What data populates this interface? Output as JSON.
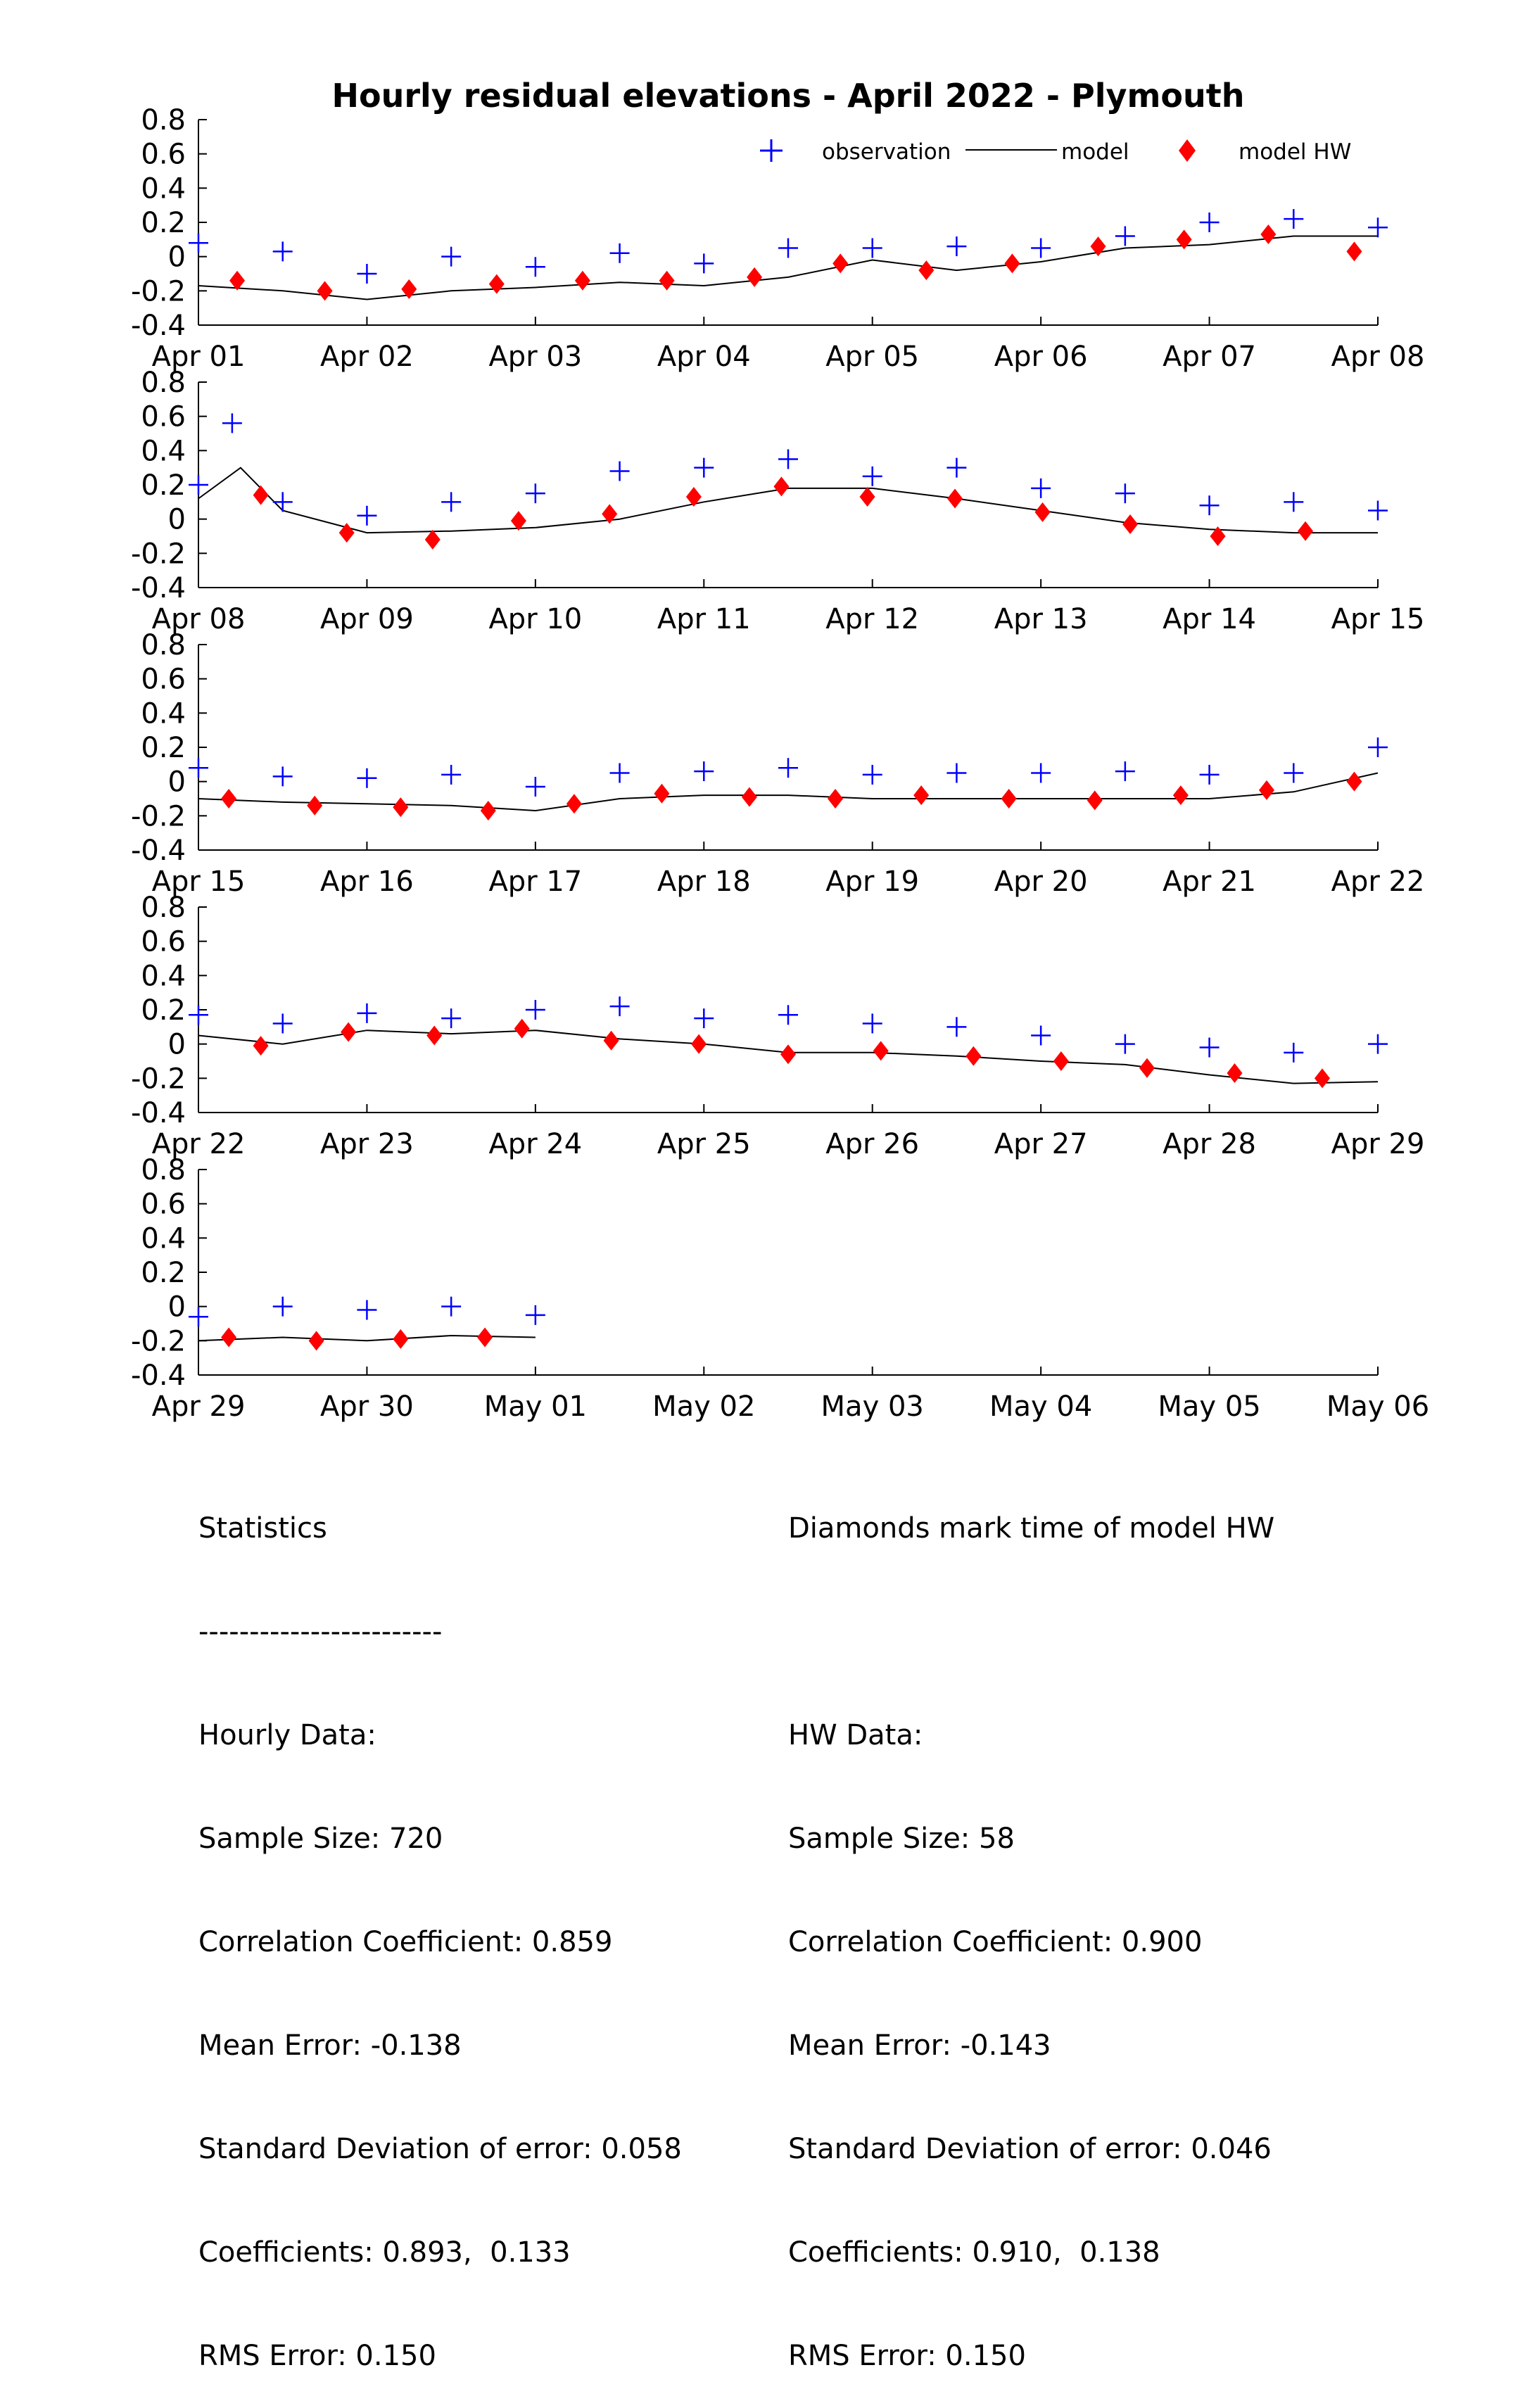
{
  "chart_data": {
    "type": "scatter",
    "title": "Hourly residual elevations - April  2022 - Plymouth",
    "legend": {
      "placement": "top-right",
      "entries": [
        {
          "label": "observation",
          "marker": "plus",
          "color": "#0000ff"
        },
        {
          "label": "model",
          "marker": "line",
          "color": "#000000"
        },
        {
          "label": "model HW",
          "marker": "diamond",
          "color": "#ff0000"
        }
      ]
    },
    "ylim": [
      -0.4,
      0.8
    ],
    "yticks": [
      "0.8",
      "0.6",
      "0.4",
      "0.2",
      "0",
      "-0.2",
      "-0.4"
    ],
    "grid": false,
    "panels": [
      {
        "xlim_days": [
          0,
          7
        ],
        "xtick_labels": [
          "Apr 01",
          "Apr 02",
          "Apr 03",
          "Apr 04",
          "Apr 05",
          "Apr 06",
          "Apr 07",
          "Apr 08"
        ],
        "observation": [
          [
            0.0,
            0.08
          ],
          [
            0.5,
            0.03
          ],
          [
            1.0,
            -0.1
          ],
          [
            1.5,
            0.0
          ],
          [
            2.0,
            -0.06
          ],
          [
            2.5,
            0.02
          ],
          [
            3.0,
            -0.04
          ],
          [
            3.5,
            0.05
          ],
          [
            4.0,
            0.05
          ],
          [
            4.5,
            0.06
          ],
          [
            5.0,
            0.05
          ],
          [
            5.5,
            0.12
          ],
          [
            6.0,
            0.2
          ],
          [
            6.5,
            0.22
          ],
          [
            7.0,
            0.17
          ]
        ],
        "model": [
          [
            0.0,
            -0.17
          ],
          [
            0.5,
            -0.2
          ],
          [
            1.0,
            -0.25
          ],
          [
            1.5,
            -0.2
          ],
          [
            2.0,
            -0.18
          ],
          [
            2.5,
            -0.15
          ],
          [
            3.0,
            -0.17
          ],
          [
            3.5,
            -0.12
          ],
          [
            4.0,
            -0.02
          ],
          [
            4.5,
            -0.08
          ],
          [
            5.0,
            -0.03
          ],
          [
            5.5,
            0.05
          ],
          [
            6.0,
            0.07
          ],
          [
            6.5,
            0.12
          ],
          [
            7.0,
            0.12
          ]
        ],
        "model_hw": [
          [
            0.23,
            -0.14
          ],
          [
            0.75,
            -0.2
          ],
          [
            1.25,
            -0.19
          ],
          [
            1.77,
            -0.16
          ],
          [
            2.28,
            -0.14
          ],
          [
            2.78,
            -0.14
          ],
          [
            3.3,
            -0.12
          ],
          [
            3.81,
            -0.04
          ],
          [
            4.32,
            -0.08
          ],
          [
            4.83,
            -0.04
          ],
          [
            5.34,
            0.06
          ],
          [
            5.85,
            0.1
          ],
          [
            6.35,
            0.13
          ],
          [
            6.86,
            0.03
          ]
        ]
      },
      {
        "xlim_days": [
          7,
          14
        ],
        "xtick_labels": [
          "Apr 08",
          "Apr 09",
          "Apr 10",
          "Apr 11",
          "Apr 12",
          "Apr 13",
          "Apr 14",
          "Apr 15"
        ],
        "observation": [
          [
            7.0,
            0.2
          ],
          [
            7.2,
            0.56
          ],
          [
            7.5,
            0.1
          ],
          [
            8.0,
            0.02
          ],
          [
            8.5,
            0.1
          ],
          [
            9.0,
            0.15
          ],
          [
            9.5,
            0.28
          ],
          [
            10.0,
            0.3
          ],
          [
            10.5,
            0.35
          ],
          [
            11.0,
            0.25
          ],
          [
            11.5,
            0.3
          ],
          [
            12.0,
            0.18
          ],
          [
            12.5,
            0.15
          ],
          [
            13.0,
            0.08
          ],
          [
            13.5,
            0.1
          ],
          [
            14.0,
            0.05
          ]
        ],
        "model": [
          [
            7.0,
            0.12
          ],
          [
            7.25,
            0.3
          ],
          [
            7.5,
            0.05
          ],
          [
            8.0,
            -0.08
          ],
          [
            8.5,
            -0.07
          ],
          [
            9.0,
            -0.05
          ],
          [
            9.5,
            0.0
          ],
          [
            10.0,
            0.1
          ],
          [
            10.5,
            0.18
          ],
          [
            11.0,
            0.18
          ],
          [
            11.5,
            0.12
          ],
          [
            12.0,
            0.05
          ],
          [
            12.5,
            -0.02
          ],
          [
            13.0,
            -0.06
          ],
          [
            13.5,
            -0.08
          ],
          [
            14.0,
            -0.08
          ]
        ],
        "model_hw": [
          [
            7.37,
            0.14
          ],
          [
            7.88,
            -0.08
          ],
          [
            8.39,
            -0.12
          ],
          [
            8.9,
            -0.01
          ],
          [
            9.44,
            0.03
          ],
          [
            9.94,
            0.13
          ],
          [
            10.46,
            0.19
          ],
          [
            10.97,
            0.13
          ],
          [
            11.49,
            0.12
          ],
          [
            12.01,
            0.04
          ],
          [
            12.53,
            -0.03
          ],
          [
            13.05,
            -0.1
          ],
          [
            13.57,
            -0.07
          ]
        ]
      },
      {
        "xlim_days": [
          14,
          21
        ],
        "xtick_labels": [
          "Apr 15",
          "Apr 16",
          "Apr 17",
          "Apr 18",
          "Apr 19",
          "Apr 20",
          "Apr 21",
          "Apr 22"
        ],
        "observation": [
          [
            14.0,
            0.08
          ],
          [
            14.5,
            0.03
          ],
          [
            15.0,
            0.02
          ],
          [
            15.5,
            0.04
          ],
          [
            16.0,
            -0.03
          ],
          [
            16.5,
            0.05
          ],
          [
            17.0,
            0.06
          ],
          [
            17.5,
            0.08
          ],
          [
            18.0,
            0.04
          ],
          [
            18.5,
            0.05
          ],
          [
            19.0,
            0.05
          ],
          [
            19.5,
            0.06
          ],
          [
            20.0,
            0.04
          ],
          [
            20.5,
            0.05
          ],
          [
            21.0,
            0.2
          ]
        ],
        "model": [
          [
            14.0,
            -0.1
          ],
          [
            14.5,
            -0.12
          ],
          [
            15.0,
            -0.13
          ],
          [
            15.5,
            -0.14
          ],
          [
            16.0,
            -0.17
          ],
          [
            16.5,
            -0.1
          ],
          [
            17.0,
            -0.08
          ],
          [
            17.5,
            -0.08
          ],
          [
            18.0,
            -0.1
          ],
          [
            18.5,
            -0.1
          ],
          [
            19.0,
            -0.1
          ],
          [
            19.5,
            -0.1
          ],
          [
            20.0,
            -0.1
          ],
          [
            20.5,
            -0.06
          ],
          [
            21.0,
            0.05
          ]
        ],
        "model_hw": [
          [
            14.18,
            -0.1
          ],
          [
            14.69,
            -0.14
          ],
          [
            15.2,
            -0.15
          ],
          [
            15.72,
            -0.17
          ],
          [
            16.23,
            -0.13
          ],
          [
            16.75,
            -0.07
          ],
          [
            17.27,
            -0.09
          ],
          [
            17.78,
            -0.1
          ],
          [
            18.29,
            -0.08
          ],
          [
            18.81,
            -0.1
          ],
          [
            19.32,
            -0.11
          ],
          [
            19.83,
            -0.08
          ],
          [
            20.34,
            -0.05
          ],
          [
            20.86,
            0.0
          ]
        ]
      },
      {
        "xlim_days": [
          21,
          28
        ],
        "xtick_labels": [
          "Apr 22",
          "Apr 23",
          "Apr 24",
          "Apr 25",
          "Apr 26",
          "Apr 27",
          "Apr 28",
          "Apr 29"
        ],
        "observation": [
          [
            21.0,
            0.17
          ],
          [
            21.5,
            0.12
          ],
          [
            22.0,
            0.18
          ],
          [
            22.5,
            0.15
          ],
          [
            23.0,
            0.2
          ],
          [
            23.5,
            0.22
          ],
          [
            24.0,
            0.15
          ],
          [
            24.5,
            0.17
          ],
          [
            25.0,
            0.12
          ],
          [
            25.5,
            0.1
          ],
          [
            26.0,
            0.05
          ],
          [
            26.5,
            0.0
          ],
          [
            27.0,
            -0.02
          ],
          [
            27.5,
            -0.05
          ],
          [
            28.0,
            0.0
          ]
        ],
        "model": [
          [
            21.0,
            0.05
          ],
          [
            21.5,
            0.0
          ],
          [
            22.0,
            0.08
          ],
          [
            22.5,
            0.06
          ],
          [
            23.0,
            0.08
          ],
          [
            23.5,
            0.03
          ],
          [
            24.0,
            0.0
          ],
          [
            24.5,
            -0.05
          ],
          [
            25.0,
            -0.05
          ],
          [
            25.5,
            -0.07
          ],
          [
            26.0,
            -0.1
          ],
          [
            26.5,
            -0.12
          ],
          [
            27.0,
            -0.18
          ],
          [
            27.5,
            -0.23
          ],
          [
            28.0,
            -0.22
          ]
        ],
        "model_hw": [
          [
            21.37,
            -0.01
          ],
          [
            21.89,
            0.07
          ],
          [
            22.4,
            0.05
          ],
          [
            22.92,
            0.09
          ],
          [
            23.45,
            0.02
          ],
          [
            23.97,
            0.0
          ],
          [
            24.5,
            -0.06
          ],
          [
            25.05,
            -0.04
          ],
          [
            25.6,
            -0.07
          ],
          [
            26.12,
            -0.1
          ],
          [
            26.63,
            -0.14
          ],
          [
            27.15,
            -0.17
          ],
          [
            27.67,
            -0.2
          ]
        ]
      },
      {
        "xlim_days": [
          28,
          35
        ],
        "xtick_labels": [
          "Apr 29",
          "Apr 30",
          "May 01",
          "May 02",
          "May 03",
          "May 04",
          "May 05",
          "May 06"
        ],
        "observation": [
          [
            28.0,
            -0.06
          ],
          [
            28.5,
            0.0
          ],
          [
            29.0,
            -0.02
          ],
          [
            29.5,
            0.0
          ],
          [
            30.0,
            -0.05
          ]
        ],
        "model": [
          [
            28.0,
            -0.2
          ],
          [
            28.5,
            -0.18
          ],
          [
            29.0,
            -0.2
          ],
          [
            29.5,
            -0.17
          ],
          [
            30.0,
            -0.18
          ]
        ],
        "model_hw": [
          [
            28.18,
            -0.18
          ],
          [
            28.7,
            -0.2
          ],
          [
            29.2,
            -0.19
          ],
          [
            29.7,
            -0.18
          ]
        ]
      }
    ]
  },
  "statistics": {
    "left": {
      "heading": "Statistics",
      "rule": "------------------------",
      "section": "Hourly Data:",
      "sample_size": "Sample Size: 720",
      "correlation": "Correlation Coefficient: 0.859",
      "mean_error": "Mean Error: -0.138",
      "std_dev": "Standard Deviation of error: 0.058",
      "coefficients": "Coefficients: 0.893,  0.133",
      "rms": "RMS Error: 0.150"
    },
    "right": {
      "heading": "Diamonds mark time of model HW",
      "section": "HW Data:",
      "sample_size": "Sample Size: 58",
      "correlation": "Correlation Coefficient: 0.900",
      "mean_error": "Mean Error: -0.143",
      "std_dev": "Standard Deviation of error: 0.046",
      "coefficients": "Coefficients: 0.910,  0.138",
      "rms": "RMS Error: 0.150"
    }
  }
}
